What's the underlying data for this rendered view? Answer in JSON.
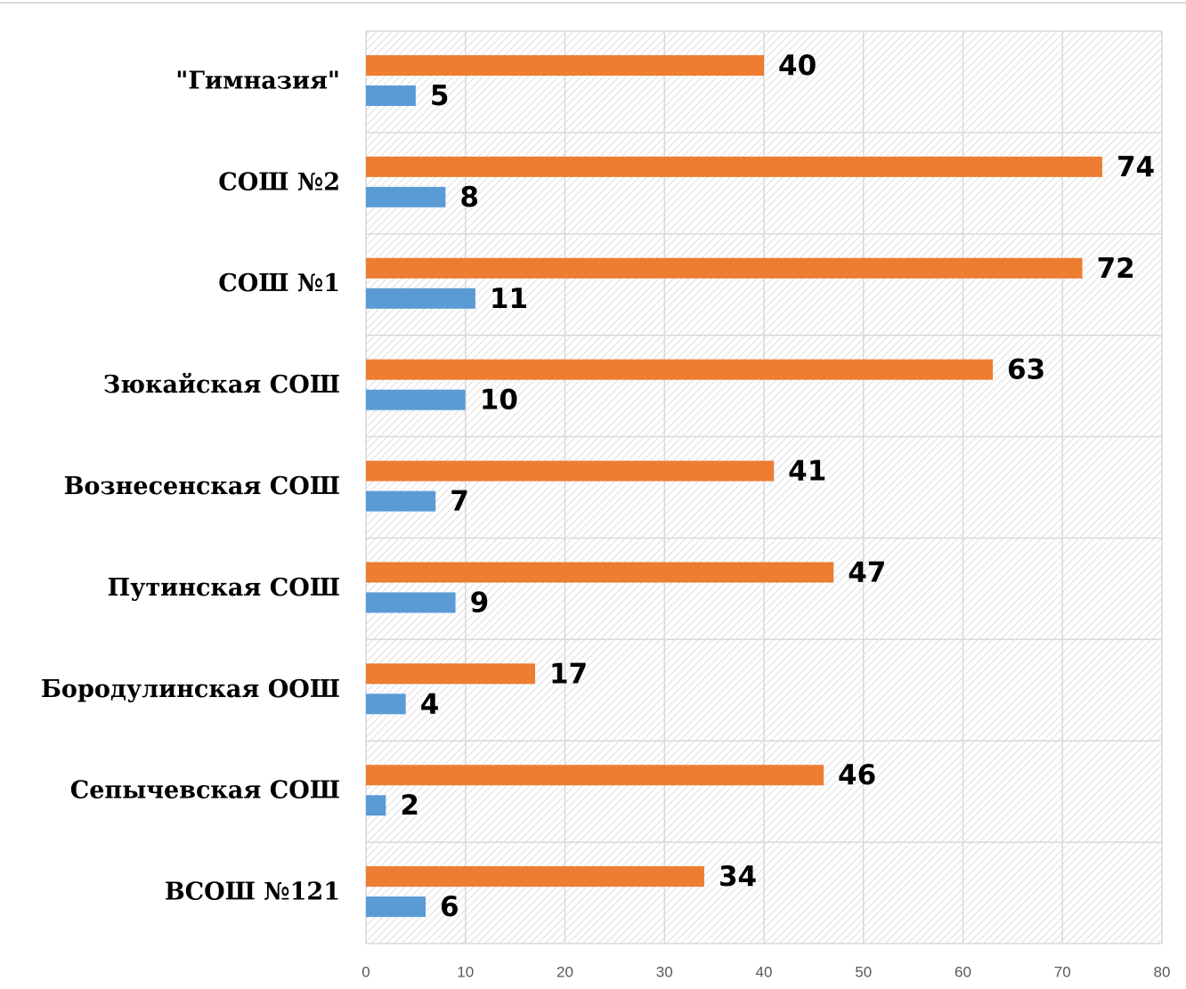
{
  "chart_data": {
    "type": "hbar",
    "categories": [
      "\"Гимназия\"",
      "СОШ №2",
      "СОШ №1",
      "Зюкайская СОШ",
      "Вознесенская СОШ",
      "Путинская СОШ",
      "Бородулинская ООШ",
      "Сепычевская СОШ",
      "ВСОШ №121"
    ],
    "series": [
      {
        "color": "#ed7d31",
        "values": [
          40,
          74,
          72,
          63,
          41,
          47,
          17,
          46,
          34
        ]
      },
      {
        "color": "#5b9bd5",
        "values": [
          5,
          8,
          11,
          10,
          7,
          9,
          4,
          2,
          6
        ]
      }
    ],
    "xlim": [
      0,
      80
    ],
    "xticks": [
      0,
      10,
      20,
      30,
      40,
      50,
      60,
      70,
      80
    ],
    "grid": true
  }
}
